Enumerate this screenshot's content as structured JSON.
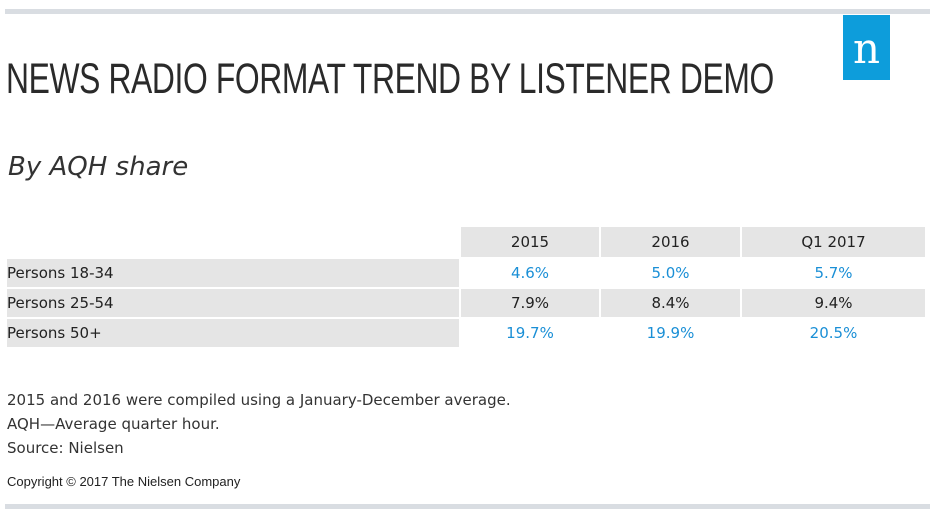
{
  "brand": {
    "logo_letter": "n",
    "accent_color": "#0d9ddb"
  },
  "header": {
    "title": "NEWS RADIO FORMAT TREND BY LISTENER DEMO",
    "subtitle": "By AQH share"
  },
  "chart_data": {
    "type": "table",
    "title": "NEWS RADIO FORMAT TREND BY LISTENER DEMO",
    "subtitle": "By AQH share",
    "columns": [
      "2015",
      "2016",
      "Q1 2017"
    ],
    "rows": [
      {
        "label": "Persons 18-34",
        "values": [
          4.6,
          5.0,
          5.7
        ],
        "display": [
          "4.6%",
          "5.0%",
          "5.7%"
        ],
        "style": "blue"
      },
      {
        "label": "Persons 25-54",
        "values": [
          7.9,
          8.4,
          9.4
        ],
        "display": [
          "7.9%",
          "8.4%",
          "9.4%"
        ],
        "style": "gray"
      },
      {
        "label": "Persons 50+",
        "values": [
          19.7,
          19.9,
          20.5
        ],
        "display": [
          "19.7%",
          "19.9%",
          "20.5%"
        ],
        "style": "blue"
      }
    ],
    "colors": {
      "blue_value": "#1a8fd6",
      "band": "#e5e5e5"
    }
  },
  "footer": {
    "notes": [
      "2015 and 2016 were compiled using a January-December average.",
      "AQH—Average quarter hour.",
      "Source: Nielsen"
    ],
    "copyright": "Copyright © 2017 The Nielsen Company"
  }
}
